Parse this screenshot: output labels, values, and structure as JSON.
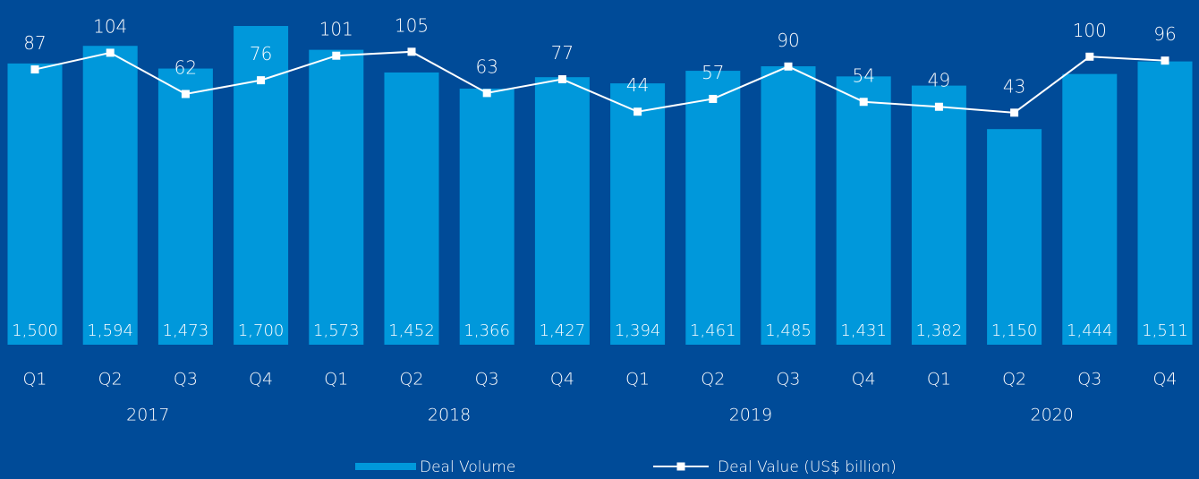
{
  "chart_data": {
    "type": "bar",
    "categories": [
      "Q1",
      "Q2",
      "Q3",
      "Q4",
      "Q1",
      "Q2",
      "Q3",
      "Q4",
      "Q1",
      "Q2",
      "Q3",
      "Q4",
      "Q1",
      "Q2",
      "Q3",
      "Q4"
    ],
    "groups": [
      "2017",
      "2018",
      "2019",
      "2020"
    ],
    "series": [
      {
        "name": "Deal Volume",
        "type": "bar",
        "color": "#0098db",
        "values": [
          1500,
          1594,
          1473,
          1700,
          1573,
          1452,
          1366,
          1427,
          1394,
          1461,
          1485,
          1431,
          1382,
          1150,
          1444,
          1511
        ],
        "value_labels": [
          "1,500",
          "1,594",
          "1,473",
          "1,700",
          "1,573",
          "1,452",
          "1,366",
          "1,427",
          "1,394",
          "1,461",
          "1,485",
          "1,431",
          "1,382",
          "1,150",
          "1,444",
          "1,511"
        ]
      },
      {
        "name": "Deal Value (US$ billion)",
        "type": "line",
        "color": "#ffffff",
        "axis": "y2",
        "values": [
          87,
          104,
          62,
          76,
          101,
          105,
          63,
          77,
          44,
          57,
          90,
          54,
          49,
          43,
          100,
          96
        ]
      }
    ],
    "legend": "bottom"
  }
}
